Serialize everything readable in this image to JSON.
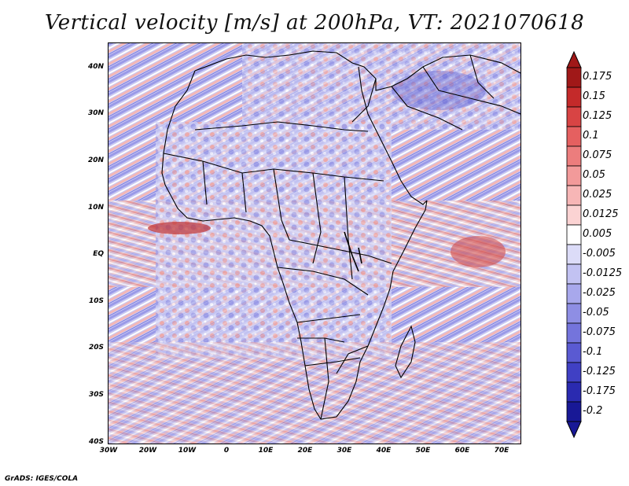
{
  "title": "Vertical velocity [m/s] at 200hPa, VT: 2021070618",
  "credit": "GrADS: IGES/COLA",
  "lat_labels": [
    "40N",
    "30N",
    "20N",
    "10N",
    "EQ",
    "10S",
    "20S",
    "30S",
    "40S"
  ],
  "lon_labels": [
    "30W",
    "20W",
    "10W",
    "0",
    "10E",
    "20E",
    "30E",
    "40E",
    "50E",
    "60E",
    "70E"
  ],
  "colorbar": {
    "labels": [
      "0.175",
      "0.15",
      "0.125",
      "0.1",
      "0.075",
      "0.05",
      "0.025",
      "0.0125",
      "0.005",
      "-0.005",
      "-0.0125",
      "-0.025",
      "-0.05",
      "-0.075",
      "-0.1",
      "-0.125",
      "-0.175",
      "-0.2"
    ],
    "colors": [
      "#a01818",
      "#c42a2a",
      "#d84444",
      "#e56060",
      "#ec7d7d",
      "#f29a9a",
      "#f7b6b6",
      "#fbd3d3",
      "#ffffff",
      "#dcdcf8",
      "#c2c2f2",
      "#a8a8ec",
      "#8e8ee4",
      "#7474dc",
      "#5a5ad2",
      "#4040c4",
      "#2a2ab0",
      "#181896"
    ]
  }
}
